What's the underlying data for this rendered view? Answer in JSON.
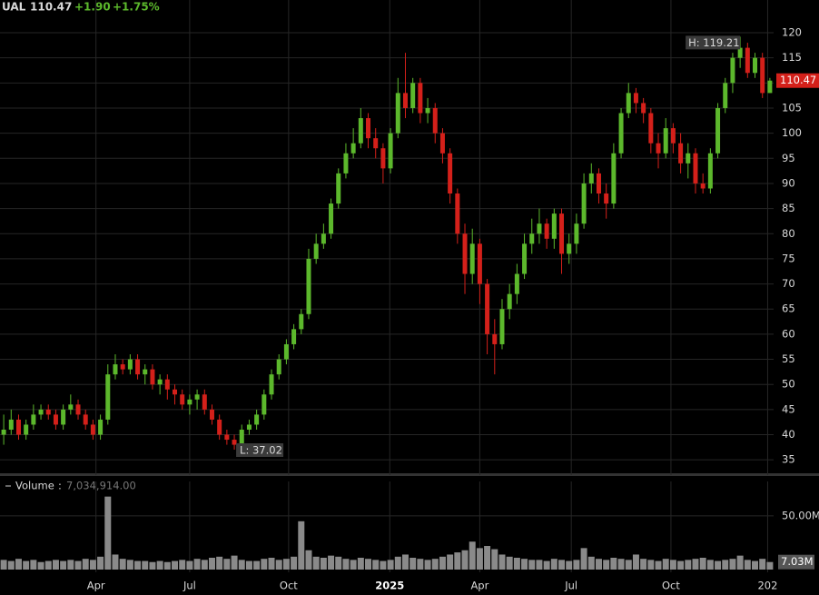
{
  "header": {
    "symbol": "UAL",
    "price": "110.47",
    "change": "+1.90",
    "change_pct": "+1.75%",
    "volume_name": "Volume",
    "volume_sep": ":",
    "volume_value": "7,034,914.00"
  },
  "chart_data": [
    {
      "type": "candlestick",
      "high_label": "H: 119.21",
      "low_label": "L: 37.02",
      "up_color": "#5cb82c",
      "down_color": "#d4201a",
      "ylim": [
        32.5,
        123.8
      ],
      "yticks": [
        35,
        40,
        45,
        50,
        55,
        60,
        65,
        70,
        75,
        80,
        85,
        90,
        95,
        100,
        105,
        110,
        115,
        120
      ],
      "grid": true,
      "open": [
        40,
        41,
        43,
        40,
        42,
        44,
        45,
        44,
        42,
        45,
        46,
        44,
        42,
        40,
        43,
        52,
        54,
        53,
        55,
        52,
        53,
        50,
        51,
        49,
        48,
        46,
        47,
        48,
        45,
        43,
        40,
        39,
        38,
        41,
        42,
        44,
        48,
        52,
        55,
        58,
        61,
        64,
        75,
        78,
        80,
        86,
        92,
        96,
        98,
        103,
        99,
        97,
        93,
        100,
        108,
        105,
        110,
        104,
        105,
        100,
        96,
        88,
        80,
        72,
        78,
        70,
        60,
        58,
        65,
        68,
        72,
        78,
        80,
        82,
        79,
        84,
        76,
        78,
        82,
        90,
        92,
        88,
        86,
        96,
        104,
        108,
        106,
        104,
        98,
        96,
        101,
        98,
        94,
        96,
        90,
        89,
        96,
        105,
        110,
        115,
        117,
        112,
        115,
        108
      ],
      "high": [
        44,
        45,
        44,
        43,
        46,
        46,
        46,
        45,
        46,
        48,
        47,
        45,
        43,
        44,
        54,
        56,
        55,
        56,
        56,
        54,
        54,
        52,
        52,
        50,
        49,
        48,
        49,
        49,
        46,
        44,
        41,
        40,
        42,
        43,
        45,
        49,
        53,
        56,
        59,
        62,
        65,
        77,
        80,
        82,
        87,
        93,
        98,
        101,
        105,
        104,
        101,
        98,
        101,
        111,
        116,
        111,
        111,
        107,
        106,
        101,
        97,
        89,
        82,
        81,
        79,
        71,
        63,
        67,
        70,
        74,
        80,
        83,
        85,
        83,
        85,
        85,
        80,
        84,
        92,
        94,
        93,
        90,
        98,
        105,
        110,
        109,
        107,
        105,
        100,
        103,
        102,
        100,
        98,
        97,
        92,
        97,
        106,
        111,
        116,
        119.21,
        118,
        116,
        116,
        111
      ],
      "low": [
        38,
        40,
        39,
        39,
        41,
        43,
        43,
        41,
        41,
        44,
        43,
        41,
        39,
        39,
        42,
        51,
        52,
        52,
        51,
        50,
        49,
        48,
        47,
        46,
        45,
        44,
        45,
        44,
        42,
        39,
        38,
        37.02,
        37.5,
        40,
        41,
        43,
        47,
        51,
        54,
        57,
        60,
        63,
        74,
        77,
        79,
        85,
        91,
        95,
        97,
        97,
        95,
        90,
        92,
        99,
        103,
        104,
        102,
        102,
        98,
        94,
        86,
        78,
        68,
        70,
        66,
        56,
        52,
        57,
        63,
        66,
        71,
        76,
        78,
        77,
        77,
        72,
        74,
        76,
        81,
        88,
        86,
        83,
        85,
        95,
        103,
        104,
        102,
        96,
        93,
        95,
        96,
        92,
        91,
        88,
        88,
        88,
        95,
        104,
        108,
        113,
        111,
        111,
        107,
        108
      ],
      "close": [
        41,
        43,
        40,
        42,
        44,
        45,
        44,
        42,
        45,
        46,
        44,
        42,
        40,
        43,
        52,
        54,
        53,
        55,
        52,
        53,
        50,
        51,
        49,
        48,
        46,
        47,
        48,
        45,
        43,
        40,
        39,
        38,
        41,
        42,
        44,
        48,
        52,
        55,
        58,
        61,
        64,
        75,
        78,
        80,
        86,
        92,
        96,
        98,
        103,
        99,
        97,
        93,
        100,
        108,
        105,
        110,
        104,
        105,
        100,
        96,
        88,
        80,
        72,
        78,
        70,
        60,
        58,
        65,
        68,
        72,
        78,
        80,
        82,
        79,
        84,
        76,
        78,
        82,
        90,
        92,
        88,
        86,
        96,
        104,
        108,
        106,
        104,
        98,
        96,
        101,
        98,
        94,
        96,
        90,
        89,
        96,
        105,
        110,
        115,
        117,
        112,
        115,
        108,
        110.47
      ]
    },
    {
      "type": "bar",
      "name": "Volume",
      "color": "#8a8a8a",
      "last_value_label": "7.03M",
      "ylim": [
        0,
        69.4
      ],
      "yticks": [
        {
          "value": 50,
          "label": "50.00M"
        }
      ],
      "xlim": [
        0,
        104
      ],
      "xticks": [
        {
          "value": 12.9,
          "label": "Apr"
        },
        {
          "value": 25.5,
          "label": "Jul"
        },
        {
          "value": 38.8,
          "label": "Oct"
        },
        {
          "value": 52.4,
          "label": "2025"
        },
        {
          "value": 64.5,
          "label": "Apr"
        },
        {
          "value": 76.8,
          "label": "Jul"
        },
        {
          "value": 90.2,
          "label": "Oct"
        },
        {
          "value": 103.2,
          "label": "202"
        }
      ],
      "values": [
        9,
        8,
        10,
        8,
        9,
        7,
        8,
        9,
        8,
        9,
        8,
        10,
        9,
        12,
        68,
        14,
        10,
        9,
        8,
        8,
        7,
        8,
        7,
        8,
        9,
        8,
        10,
        9,
        11,
        12,
        10,
        13,
        9,
        8,
        8,
        10,
        11,
        9,
        10,
        12,
        45,
        18,
        12,
        11,
        13,
        12,
        10,
        9,
        11,
        10,
        9,
        8,
        9,
        12,
        14,
        11,
        10,
        9,
        10,
        12,
        14,
        16,
        18,
        26,
        20,
        22,
        19,
        14,
        12,
        11,
        10,
        9,
        9,
        8,
        10,
        9,
        8,
        9,
        20,
        12,
        10,
        9,
        11,
        10,
        9,
        14,
        10,
        9,
        8,
        10,
        9,
        8,
        9,
        10,
        11,
        9,
        8,
        9,
        10,
        13,
        9,
        8,
        10,
        7.03
      ]
    }
  ]
}
